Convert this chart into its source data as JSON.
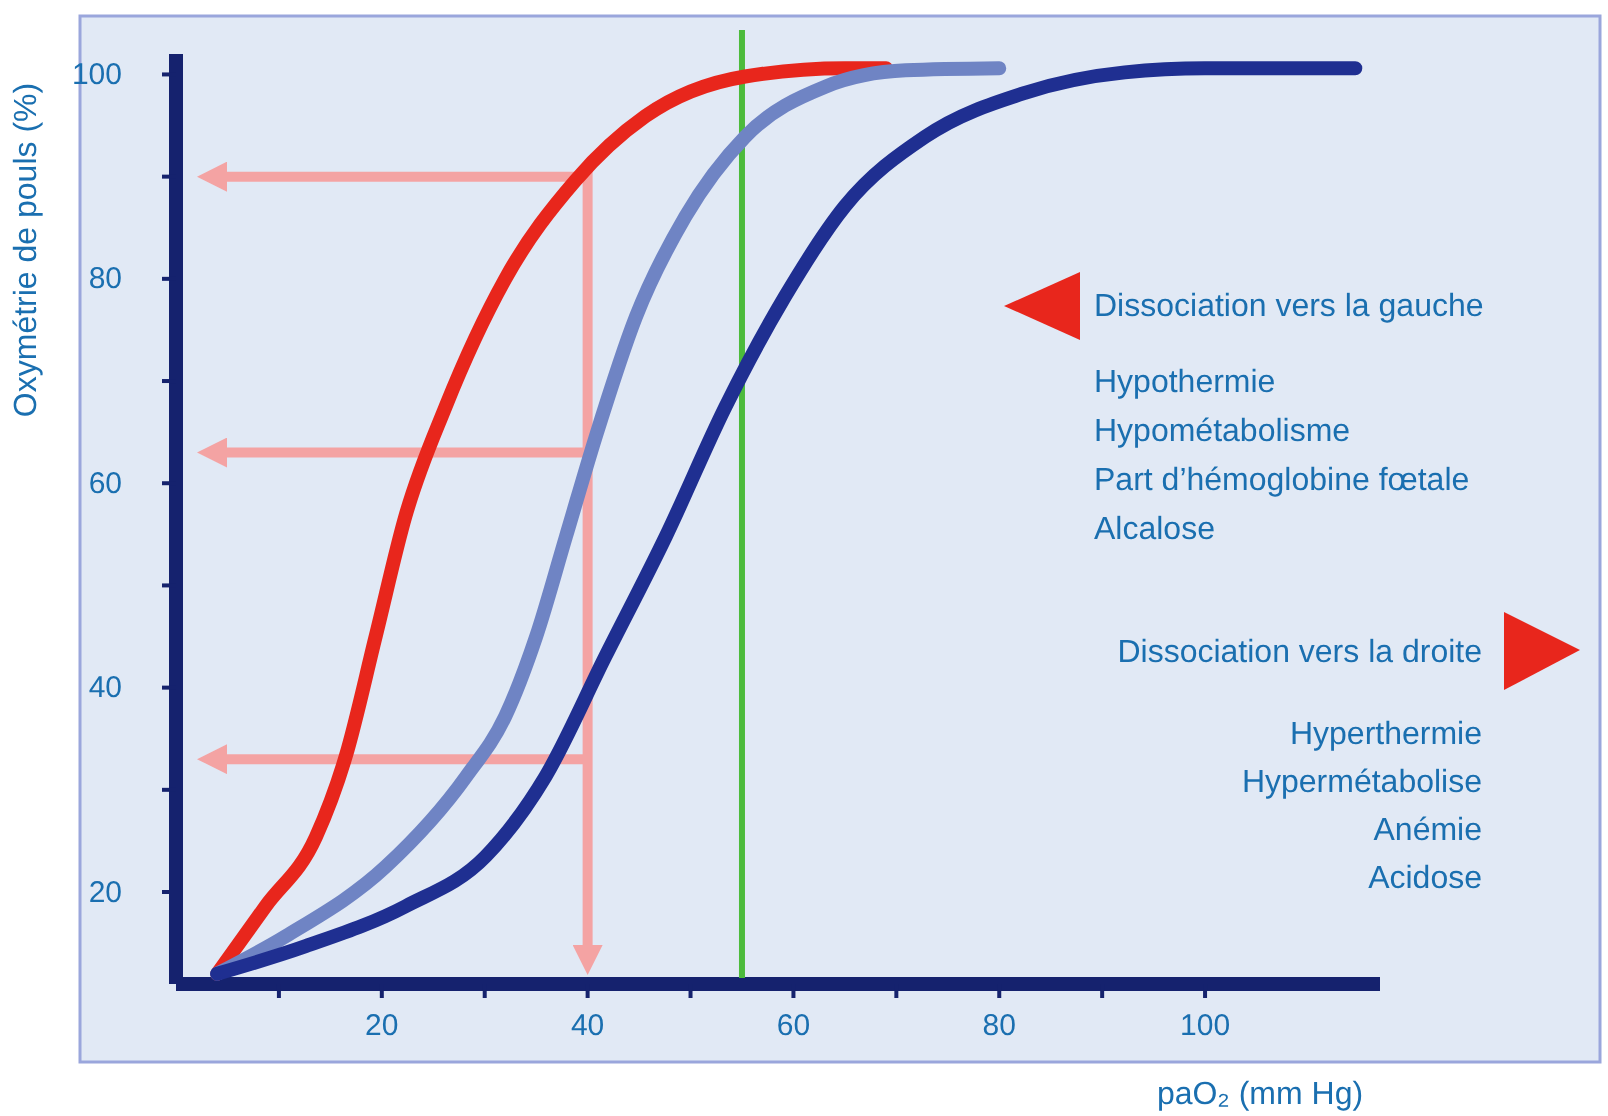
{
  "chart_data": {
    "type": "line",
    "xlabel": "paO₂ (mm Hg)",
    "ylabel": "Oxymétrie de pouls (%)",
    "xlim": [
      0,
      117
    ],
    "ylim": [
      11,
      102
    ],
    "xticks": [
      {
        "value": 10,
        "label": null
      },
      20,
      {
        "value": 30,
        "label": null
      },
      40,
      {
        "value": 50,
        "label": null
      },
      60,
      {
        "value": 70,
        "label": null
      },
      80,
      {
        "value": 90,
        "label": null
      },
      100
    ],
    "yticks": [
      20,
      {
        "value": 30,
        "label": null
      },
      40,
      {
        "value": 50,
        "label": null
      },
      60,
      {
        "value": 70,
        "label": null
      },
      80,
      {
        "value": 90,
        "label": null
      },
      100
    ],
    "grid": false,
    "marker": "none",
    "line_style": "solid",
    "series": [
      {
        "color": "#e8261c",
        "x": [
          4,
          8.7,
          13.6,
          16.5,
          19.4,
          22.3,
          26.2,
          32,
          38.8,
          45.6,
          55.3,
          65,
          69
        ],
        "values": [
          12,
          18.6,
          25.4,
          33.3,
          45,
          56.8,
          67.5,
          80,
          89.6,
          95.9,
          99.8,
          100.6,
          100.6
        ]
      },
      {
        "color": "#6f84c4",
        "x": [
          4,
          10.7,
          20.4,
          28.2,
          32,
          35,
          37.9,
          40.8,
          44.7,
          49.5,
          55.3,
          63.1,
          70.9,
          80
        ],
        "values": [
          12,
          15.7,
          22.5,
          31.3,
          37.2,
          45,
          54.8,
          64.6,
          76.3,
          86.1,
          93.9,
          98.8,
          100.4,
          100.6
        ]
      },
      {
        "color": "#1f2f91",
        "x": [
          4,
          12.6,
          22.3,
          30.1,
          35.9,
          41.7,
          47.6,
          53.4,
          59.2,
          65,
          72.8,
          82.5,
          92.2,
          100,
          114.6
        ],
        "values": [
          12,
          14.7,
          18.6,
          23.5,
          31.3,
          43,
          54.8,
          67.5,
          78.3,
          87.1,
          93.9,
          98.2,
          100.2,
          100.6,
          100.6
        ]
      }
    ],
    "ref_lines": [
      {
        "axis": "y",
        "value": 90,
        "color": "#f4a3a3"
      },
      {
        "axis": "y",
        "value": 63,
        "color": "#f4a3a3"
      },
      {
        "axis": "y",
        "value": 33,
        "color": "#f4a3a3"
      },
      {
        "axis": "x",
        "value": 40,
        "color": "#f4a3a3"
      },
      {
        "axis": "x",
        "value": 55,
        "color": "#4cbb3c"
      }
    ],
    "annotations": [
      "Dissociation vers la gauche",
      "Hypothermie",
      "Hypométabolisme",
      "Part d’hémoglobine fœtale",
      "Alcalose",
      "Dissociation vers la droite",
      "Hyperthermie",
      "Hypermétabolise",
      "Anémie",
      "Acidose"
    ]
  }
}
